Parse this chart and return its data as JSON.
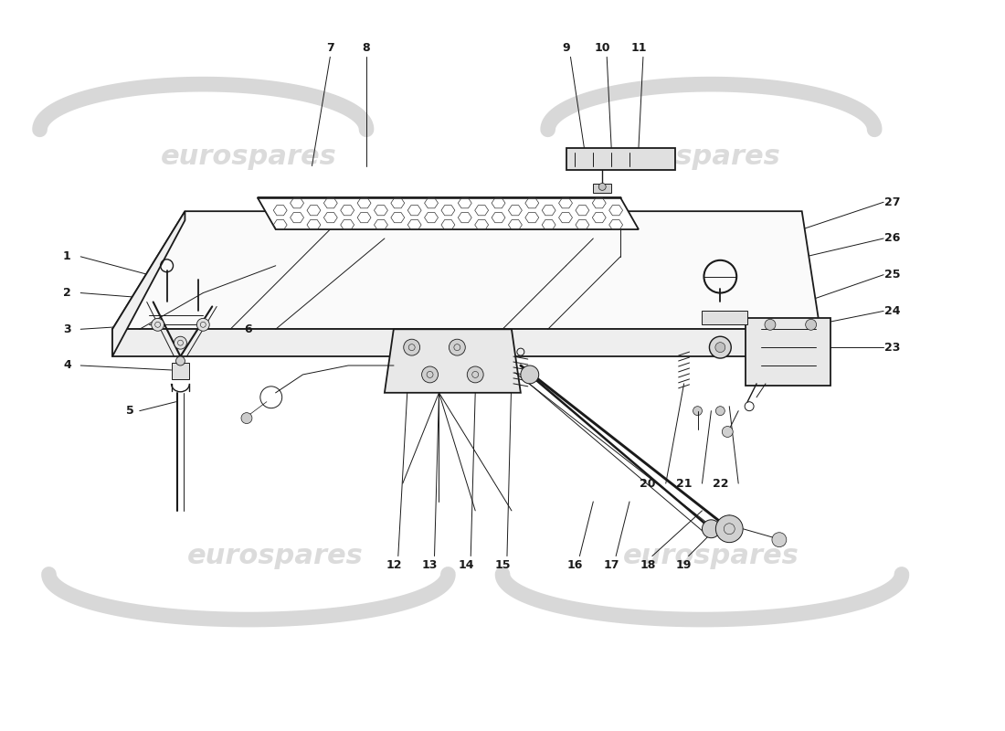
{
  "bg_color": "#ffffff",
  "line_color": "#1a1a1a",
  "watermark_color": "#d8d8d8",
  "watermark_text": "eurospares",
  "figsize": [
    11.0,
    8.0
  ],
  "dpi": 100,
  "xlim": [
    0,
    110
  ],
  "ylim": [
    0,
    80
  ]
}
